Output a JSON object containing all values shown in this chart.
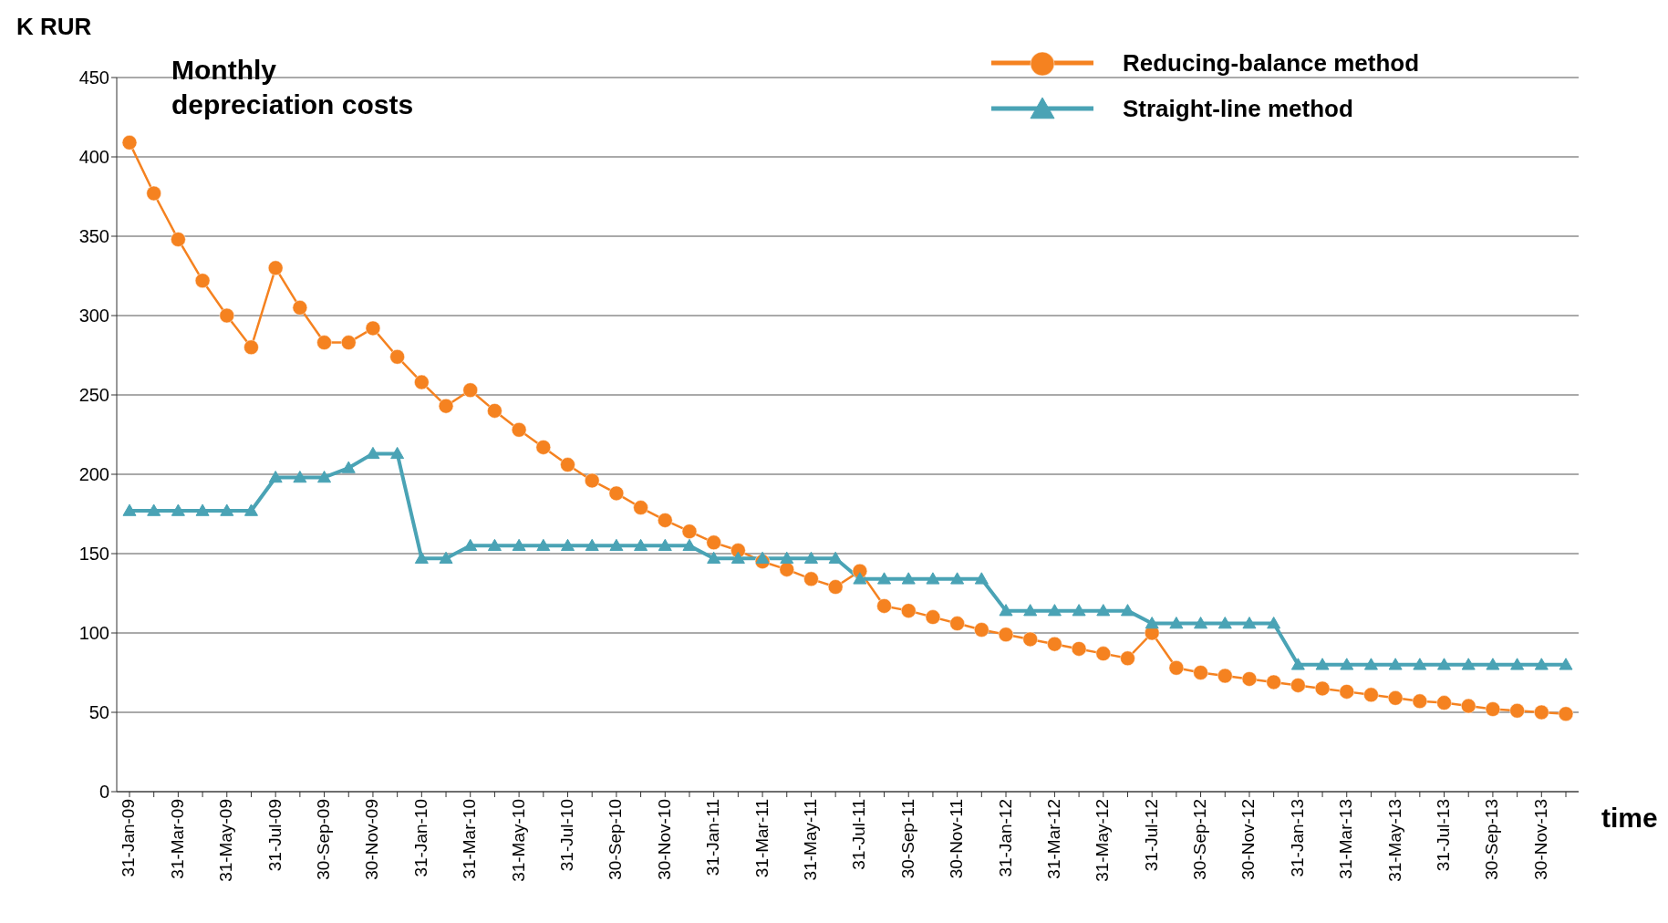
{
  "chart_data": {
    "type": "line",
    "title": "Monthly\ndepreciation costs",
    "ylabel": "K RUR",
    "xlabel": "time",
    "categories": [
      "31-Jan-09",
      null,
      "31-Mar-09",
      null,
      "31-May-09",
      null,
      "31-Jul-09",
      null,
      "30-Sep-09",
      null,
      "30-Nov-09",
      null,
      "31-Jan-10",
      null,
      "31-Mar-10",
      null,
      "31-May-10",
      null,
      "31-Jul-10",
      null,
      "30-Sep-10",
      null,
      "30-Nov-10",
      null,
      "31-Jan-11",
      null,
      "31-Mar-11",
      null,
      "31-May-11",
      null,
      "31-Jul-11",
      null,
      "30-Sep-11",
      null,
      "30-Nov-11",
      null,
      "31-Jan-12",
      null,
      "31-Mar-12",
      null,
      "31-May-12",
      null,
      "31-Jul-12",
      null,
      "30-Sep-12",
      null,
      "30-Nov-12",
      null,
      "31-Jan-13",
      null,
      "31-Mar-13",
      null,
      "31-May-13",
      null,
      "31-Jul-13",
      null,
      "30-Sep-13",
      null,
      "30-Nov-13",
      null
    ],
    "series": [
      {
        "name": "Reducing-balance method",
        "color": "#f58220",
        "marker": "circle",
        "values": [
          409,
          377,
          348,
          322,
          300,
          280,
          330,
          305,
          283,
          283,
          292,
          274,
          258,
          243,
          253,
          240,
          228,
          217,
          206,
          196,
          188,
          179,
          171,
          164,
          157,
          152,
          145,
          140,
          134,
          129,
          139,
          117,
          114,
          110,
          106,
          102,
          99,
          96,
          93,
          90,
          87,
          84,
          100,
          78,
          75,
          73,
          71,
          69,
          67,
          65,
          63,
          61,
          59,
          57,
          56,
          54,
          52,
          51,
          50,
          49
        ]
      },
      {
        "name": "Straight-line method",
        "color": "#4aa3b5",
        "marker": "triangle",
        "values": [
          177,
          177,
          177,
          177,
          177,
          177,
          198,
          198,
          198,
          204,
          213,
          213,
          147,
          147,
          155,
          155,
          155,
          155,
          155,
          155,
          155,
          155,
          155,
          155,
          147,
          147,
          147,
          147,
          147,
          147,
          134,
          134,
          134,
          134,
          134,
          134,
          114,
          114,
          114,
          114,
          114,
          114,
          106,
          106,
          106,
          106,
          106,
          106,
          80,
          80,
          80,
          80,
          80,
          80,
          80,
          80,
          80,
          80,
          80,
          80
        ]
      }
    ],
    "ylim": [
      0,
      450
    ],
    "yticks": [
      0,
      50,
      100,
      150,
      200,
      250,
      300,
      350,
      400,
      450
    ],
    "grid": "y",
    "legend": "top right"
  }
}
